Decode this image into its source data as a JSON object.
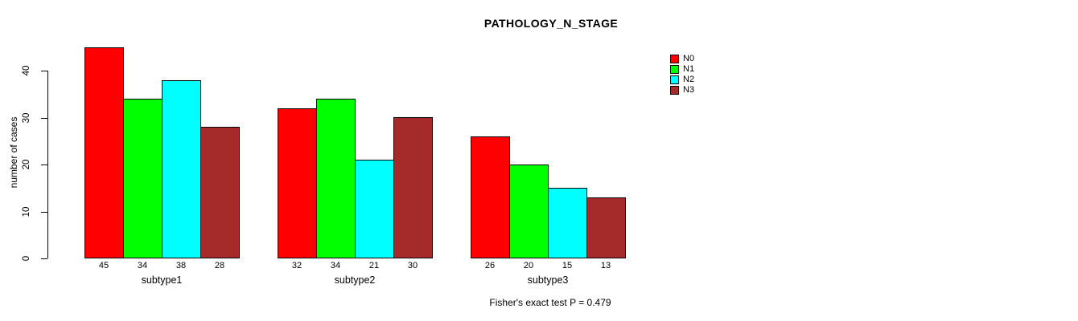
{
  "chart_data": {
    "type": "bar",
    "title": "PATHOLOGY_N_STAGE",
    "ylabel": "number of cases",
    "xlabel": "",
    "categories": [
      "subtype1",
      "subtype2",
      "subtype3"
    ],
    "series": [
      {
        "name": "N0",
        "color": "#ff0000",
        "values": [
          45,
          32,
          26
        ]
      },
      {
        "name": "N1",
        "color": "#00ff00",
        "values": [
          34,
          34,
          20
        ]
      },
      {
        "name": "N2",
        "color": "#00ffff",
        "values": [
          38,
          21,
          15
        ]
      },
      {
        "name": "N3",
        "color": "#a52a2a",
        "values": [
          28,
          30,
          13
        ]
      }
    ],
    "yticks": [
      0,
      10,
      20,
      30,
      40
    ],
    "ylim": [
      0,
      45
    ],
    "bar_value_labels": true,
    "grid": false,
    "legend_position": "right-outside",
    "legend_entries": [
      "N0",
      "N1",
      "N2",
      "N3"
    ],
    "footnote": "Fisher's exact test P = 0.479"
  }
}
